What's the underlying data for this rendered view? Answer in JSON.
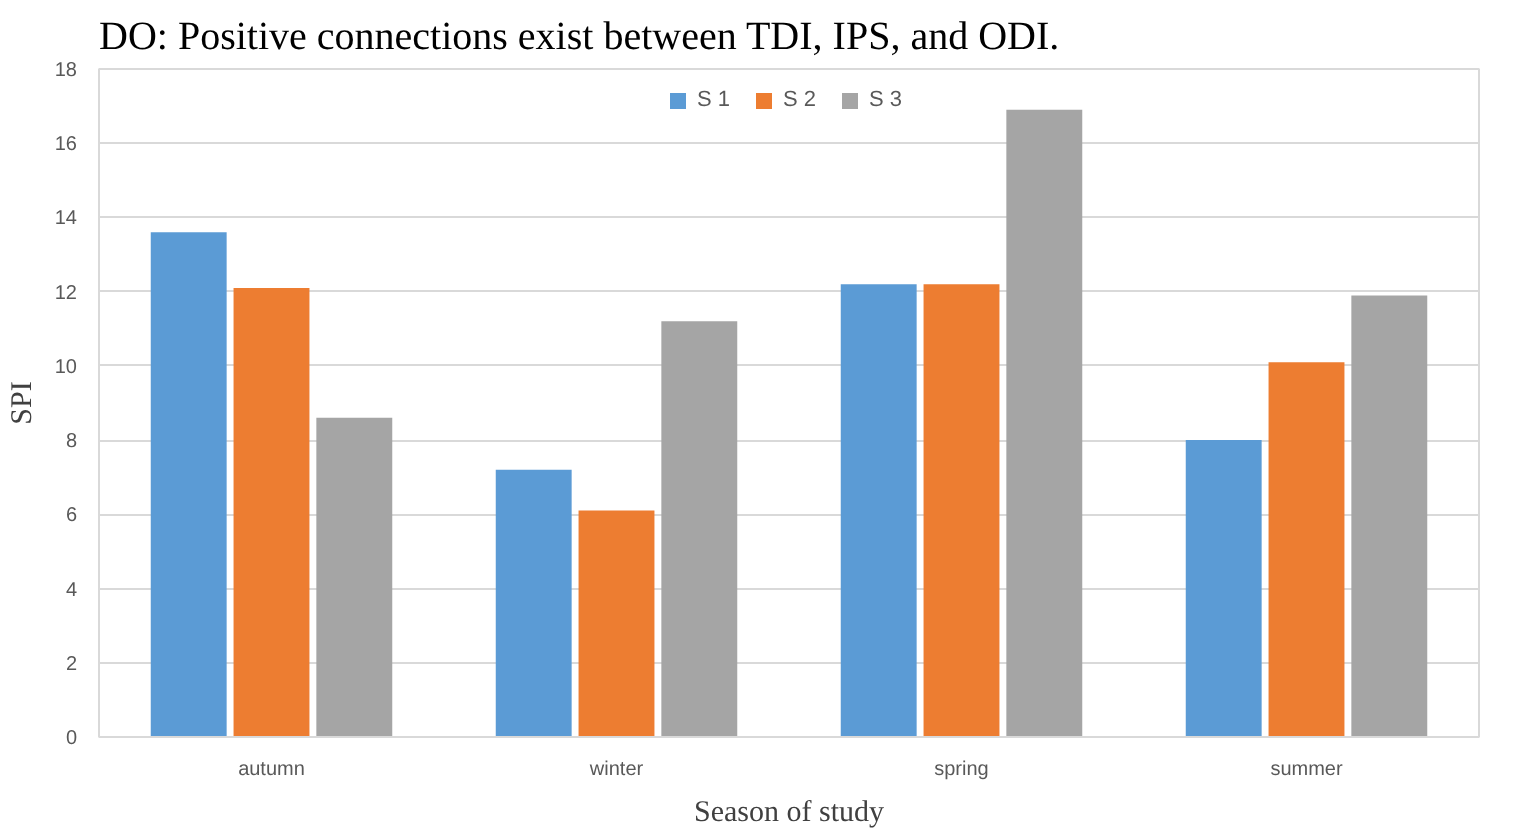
{
  "chart_data": {
    "type": "bar",
    "xlabel": "Season of study",
    "ylabel": "SPI",
    "annotations": [
      "DO: Positive connections exist between TDI, IPS, and ODI."
    ],
    "categories": [
      "autumn",
      "winter",
      "spring",
      "summer"
    ],
    "series": [
      {
        "name": "S 1",
        "color": "#5b9bd5",
        "values": [
          13.6,
          7.2,
          12.2,
          8.0
        ]
      },
      {
        "name": "S 2",
        "color": "#ed7d31",
        "values": [
          12.1,
          6.1,
          12.2,
          10.1
        ]
      },
      {
        "name": "S 3",
        "color": "#a5a5a5",
        "values": [
          8.6,
          11.2,
          16.9,
          11.9
        ]
      }
    ],
    "ylim": [
      0,
      18
    ],
    "yticks": [
      0,
      2,
      4,
      6,
      8,
      10,
      12,
      14,
      16,
      18
    ],
    "grid": "y",
    "legend": "top"
  }
}
